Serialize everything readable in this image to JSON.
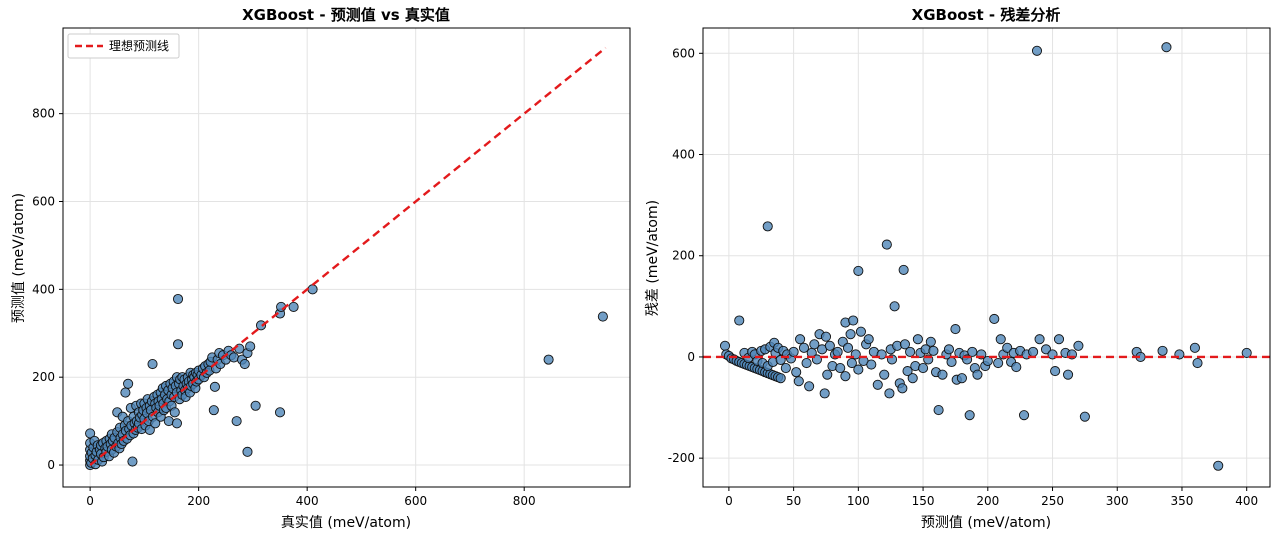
{
  "chart_data": [
    {
      "type": "scatter",
      "title": "XGBoost - 预测值 vs 真实值",
      "xlabel": "真实值 (meV/atom)",
      "ylabel": "预测值 (meV/atom)",
      "xlim": [
        -50,
        995
      ],
      "ylim": [
        -50,
        995
      ],
      "xticks": [
        0,
        200,
        400,
        600,
        800
      ],
      "yticks": [
        0,
        200,
        400,
        600,
        800
      ],
      "grid": true,
      "legend": {
        "position": "top-left",
        "entries": [
          "理想预测线"
        ]
      },
      "reference_line": {
        "name": "理想预测线",
        "from": [
          0,
          0
        ],
        "to": [
          950,
          950
        ],
        "style": "dashed",
        "color": "#e31a1c"
      },
      "point_color": "#4f86b8",
      "points": [
        [
          0,
          0
        ],
        [
          0,
          10
        ],
        [
          0,
          20
        ],
        [
          0,
          35
        ],
        [
          0,
          50
        ],
        [
          0,
          72
        ],
        [
          2,
          5
        ],
        [
          3,
          28
        ],
        [
          5,
          15
        ],
        [
          6,
          40
        ],
        [
          8,
          55
        ],
        [
          10,
          22
        ],
        [
          10,
          2
        ],
        [
          12,
          30
        ],
        [
          14,
          45
        ],
        [
          15,
          12
        ],
        [
          18,
          35
        ],
        [
          20,
          25
        ],
        [
          20,
          45
        ],
        [
          22,
          8
        ],
        [
          24,
          50
        ],
        [
          25,
          18
        ],
        [
          28,
          38
        ],
        [
          30,
          30
        ],
        [
          30,
          55
        ],
        [
          32,
          42
        ],
        [
          35,
          20
        ],
        [
          36,
          60
        ],
        [
          38,
          48
        ],
        [
          40,
          35
        ],
        [
          40,
          70
        ],
        [
          42,
          55
        ],
        [
          44,
          28
        ],
        [
          45,
          62
        ],
        [
          48,
          42
        ],
        [
          50,
          75
        ],
        [
          50,
          120
        ],
        [
          52,
          50
        ],
        [
          54,
          38
        ],
        [
          55,
          85
        ],
        [
          56,
          62
        ],
        [
          58,
          48
        ],
        [
          60,
          110
        ],
        [
          60,
          70
        ],
        [
          62,
          55
        ],
        [
          64,
          90
        ],
        [
          65,
          165
        ],
        [
          66,
          78
        ],
        [
          68,
          60
        ],
        [
          70,
          100
        ],
        [
          70,
          185
        ],
        [
          72,
          82
        ],
        [
          74,
          68
        ],
        [
          75,
          130
        ],
        [
          76,
          90
        ],
        [
          78,
          8
        ],
        [
          80,
          110
        ],
        [
          80,
          72
        ],
        [
          82,
          95
        ],
        [
          84,
          80
        ],
        [
          85,
          135
        ],
        [
          86,
          100
        ],
        [
          88,
          85
        ],
        [
          90,
          120
        ],
        [
          90,
          95
        ],
        [
          92,
          108
        ],
        [
          94,
          140
        ],
        [
          95,
          82
        ],
        [
          96,
          115
        ],
        [
          98,
          125
        ],
        [
          100,
          105
        ],
        [
          100,
          140
        ],
        [
          102,
          90
        ],
        [
          104,
          130
        ],
        [
          105,
          118
        ],
        [
          106,
          150
        ],
        [
          108,
          100
        ],
        [
          110,
          135
        ],
        [
          110,
          80
        ],
        [
          112,
          125
        ],
        [
          114,
          145
        ],
        [
          115,
          230
        ],
        [
          116,
          110
        ],
        [
          118,
          155
        ],
        [
          120,
          140
        ],
        [
          120,
          95
        ],
        [
          122,
          130
        ],
        [
          124,
          160
        ],
        [
          125,
          120
        ],
        [
          126,
          145
        ],
        [
          128,
          135
        ],
        [
          130,
          165
        ],
        [
          130,
          110
        ],
        [
          132,
          150
        ],
        [
          134,
          175
        ],
        [
          135,
          140
        ],
        [
          136,
          125
        ],
        [
          138,
          160
        ],
        [
          140,
          180
        ],
        [
          140,
          130
        ],
        [
          142,
          150
        ],
        [
          144,
          170
        ],
        [
          145,
          100
        ],
        [
          146,
          145
        ],
        [
          148,
          185
        ],
        [
          150,
          160
        ],
        [
          150,
          135
        ],
        [
          152,
          175
        ],
        [
          154,
          190
        ],
        [
          155,
          155
        ],
        [
          156,
          120
        ],
        [
          158,
          180
        ],
        [
          160,
          165
        ],
        [
          160,
          200
        ],
        [
          160,
          95
        ],
        [
          162,
          378
        ],
        [
          162,
          275
        ],
        [
          164,
          185
        ],
        [
          165,
          150
        ],
        [
          166,
          195
        ],
        [
          168,
          170
        ],
        [
          170,
          160
        ],
        [
          170,
          200
        ],
        [
          172,
          180
        ],
        [
          174,
          195
        ],
        [
          175,
          170
        ],
        [
          176,
          155
        ],
        [
          178,
          185
        ],
        [
          180,
          200
        ],
        [
          180,
          175
        ],
        [
          182,
          190
        ],
        [
          184,
          165
        ],
        [
          185,
          210
        ],
        [
          186,
          180
        ],
        [
          188,
          195
        ],
        [
          190,
          205
        ],
        [
          190,
          185
        ],
        [
          192,
          200
        ],
        [
          194,
          175
        ],
        [
          195,
          210
        ],
        [
          196,
          190
        ],
        [
          198,
          205
        ],
        [
          200,
          195
        ],
        [
          200,
          215
        ],
        [
          205,
          205
        ],
        [
          208,
          220
        ],
        [
          210,
          200
        ],
        [
          212,
          225
        ],
        [
          215,
          210
        ],
        [
          218,
          230
        ],
        [
          220,
          215
        ],
        [
          222,
          235
        ],
        [
          225,
          245
        ],
        [
          228,
          125
        ],
        [
          230,
          178
        ],
        [
          232,
          220
        ],
        [
          235,
          240
        ],
        [
          238,
          255
        ],
        [
          240,
          230
        ],
        [
          245,
          250
        ],
        [
          250,
          240
        ],
        [
          255,
          260
        ],
        [
          260,
          250
        ],
        [
          265,
          245
        ],
        [
          270,
          100
        ],
        [
          275,
          265
        ],
        [
          280,
          240
        ],
        [
          285,
          230
        ],
        [
          290,
          255
        ],
        [
          290,
          30
        ],
        [
          295,
          270
        ],
        [
          305,
          135
        ],
        [
          315,
          318
        ],
        [
          350,
          120
        ],
        [
          350,
          345
        ],
        [
          352,
          360
        ],
        [
          375,
          360
        ],
        [
          410,
          400
        ],
        [
          845,
          240
        ],
        [
          945,
          338
        ]
      ]
    },
    {
      "type": "scatter",
      "title": "XGBoost - 残差分析",
      "xlabel": "预测值 (meV/atom)",
      "ylabel": "残差 (meV/atom)",
      "xlim": [
        -20,
        418
      ],
      "ylim": [
        -257,
        650
      ],
      "xticks": [
        0,
        50,
        100,
        150,
        200,
        250,
        300,
        350,
        400
      ],
      "yticks": [
        -200,
        0,
        200,
        400,
        600
      ],
      "grid": true,
      "reference_line": {
        "y": 0,
        "style": "dashed",
        "color": "#e31a1c"
      },
      "point_color": "#4f86b8",
      "points": [
        [
          -3,
          22
        ],
        [
          -2,
          5
        ],
        [
          0,
          2
        ],
        [
          2,
          -3
        ],
        [
          4,
          -5
        ],
        [
          6,
          -8
        ],
        [
          8,
          -10
        ],
        [
          10,
          -12
        ],
        [
          12,
          -14
        ],
        [
          14,
          -16
        ],
        [
          16,
          -18
        ],
        [
          18,
          -20
        ],
        [
          20,
          -22
        ],
        [
          22,
          -24
        ],
        [
          24,
          -26
        ],
        [
          26,
          -28
        ],
        [
          28,
          -30
        ],
        [
          30,
          -32
        ],
        [
          32,
          -34
        ],
        [
          34,
          -36
        ],
        [
          36,
          -38
        ],
        [
          38,
          -40
        ],
        [
          40,
          -42
        ],
        [
          8,
          72
        ],
        [
          12,
          8
        ],
        [
          15,
          -2
        ],
        [
          18,
          10
        ],
        [
          20,
          5
        ],
        [
          22,
          -8
        ],
        [
          25,
          12
        ],
        [
          26,
          -12
        ],
        [
          28,
          15
        ],
        [
          30,
          -18
        ],
        [
          30,
          258
        ],
        [
          32,
          20
        ],
        [
          34,
          -10
        ],
        [
          35,
          28
        ],
        [
          36,
          8
        ],
        [
          38,
          18
        ],
        [
          40,
          -6
        ],
        [
          42,
          12
        ],
        [
          44,
          -22
        ],
        [
          45,
          5
        ],
        [
          48,
          -3
        ],
        [
          50,
          10
        ],
        [
          52,
          -30
        ],
        [
          54,
          -48
        ],
        [
          55,
          35
        ],
        [
          58,
          18
        ],
        [
          60,
          -12
        ],
        [
          62,
          -58
        ],
        [
          64,
          8
        ],
        [
          66,
          25
        ],
        [
          68,
          -5
        ],
        [
          70,
          45
        ],
        [
          72,
          15
        ],
        [
          74,
          -72
        ],
        [
          75,
          40
        ],
        [
          76,
          -35
        ],
        [
          78,
          22
        ],
        [
          80,
          -18
        ],
        [
          82,
          5
        ],
        [
          84,
          10
        ],
        [
          86,
          -22
        ],
        [
          88,
          30
        ],
        [
          90,
          -38
        ],
        [
          90,
          68
        ],
        [
          92,
          18
        ],
        [
          94,
          45
        ],
        [
          95,
          -12
        ],
        [
          96,
          72
        ],
        [
          98,
          5
        ],
        [
          100,
          -25
        ],
        [
          100,
          170
        ],
        [
          102,
          50
        ],
        [
          104,
          -8
        ],
        [
          106,
          25
        ],
        [
          108,
          35
        ],
        [
          110,
          -15
        ],
        [
          112,
          10
        ],
        [
          115,
          -55
        ],
        [
          118,
          5
        ],
        [
          120,
          -35
        ],
        [
          122,
          222
        ],
        [
          124,
          -72
        ],
        [
          125,
          15
        ],
        [
          126,
          -5
        ],
        [
          128,
          100
        ],
        [
          130,
          22
        ],
        [
          132,
          -52
        ],
        [
          134,
          -62
        ],
        [
          135,
          172
        ],
        [
          136,
          25
        ],
        [
          138,
          -28
        ],
        [
          140,
          10
        ],
        [
          142,
          -42
        ],
        [
          144,
          -18
        ],
        [
          146,
          35
        ],
        [
          148,
          8
        ],
        [
          150,
          -22
        ],
        [
          152,
          15
        ],
        [
          154,
          -5
        ],
        [
          156,
          30
        ],
        [
          158,
          12
        ],
        [
          160,
          -30
        ],
        [
          162,
          -105
        ],
        [
          165,
          -35
        ],
        [
          168,
          5
        ],
        [
          170,
          15
        ],
        [
          172,
          -10
        ],
        [
          175,
          55
        ],
        [
          176,
          -45
        ],
        [
          178,
          8
        ],
        [
          180,
          -42
        ],
        [
          182,
          3
        ],
        [
          184,
          -5
        ],
        [
          186,
          -115
        ],
        [
          188,
          10
        ],
        [
          190,
          -22
        ],
        [
          192,
          -35
        ],
        [
          195,
          5
        ],
        [
          198,
          -18
        ],
        [
          200,
          -8
        ],
        [
          205,
          75
        ],
        [
          208,
          -12
        ],
        [
          210,
          35
        ],
        [
          212,
          5
        ],
        [
          215,
          18
        ],
        [
          218,
          -10
        ],
        [
          220,
          8
        ],
        [
          222,
          -20
        ],
        [
          225,
          12
        ],
        [
          228,
          -115
        ],
        [
          230,
          5
        ],
        [
          235,
          10
        ],
        [
          238,
          605
        ],
        [
          240,
          35
        ],
        [
          245,
          15
        ],
        [
          250,
          5
        ],
        [
          252,
          -28
        ],
        [
          255,
          35
        ],
        [
          260,
          8
        ],
        [
          262,
          -35
        ],
        [
          265,
          5
        ],
        [
          270,
          22
        ],
        [
          275,
          -118
        ],
        [
          315,
          10
        ],
        [
          318,
          0
        ],
        [
          335,
          12
        ],
        [
          338,
          612
        ],
        [
          348,
          5
        ],
        [
          360,
          18
        ],
        [
          362,
          -12
        ],
        [
          378,
          -215
        ],
        [
          400,
          8
        ]
      ]
    }
  ]
}
